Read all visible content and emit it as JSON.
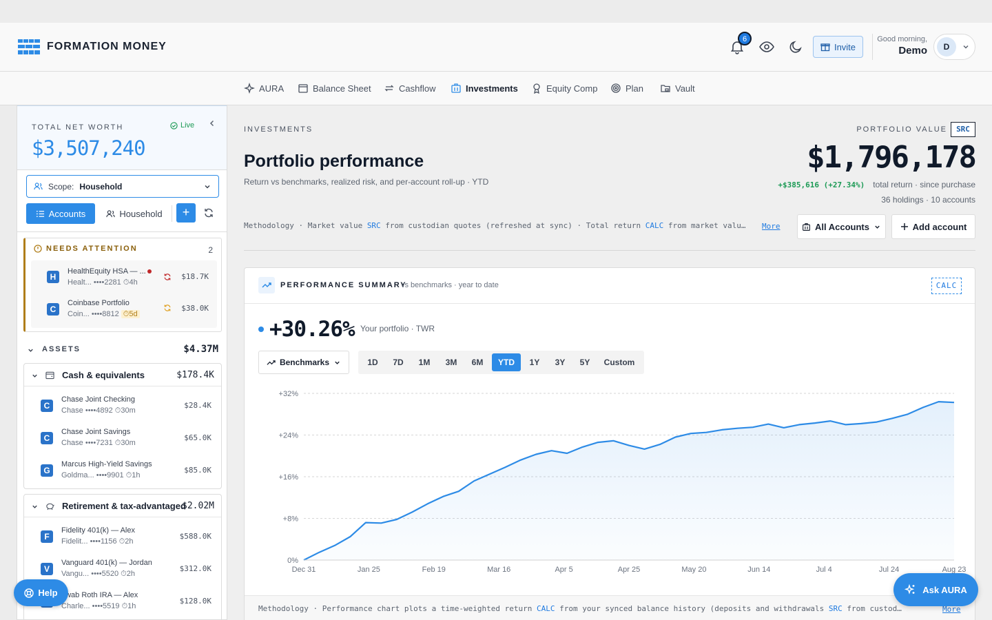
{
  "header": {
    "brand": "FORMATION MONEY",
    "notification_count": "6",
    "invite_label": "Invite",
    "greeting": "Good morning,",
    "user_name": "Demo",
    "avatar_initial": "D"
  },
  "nav": {
    "items": [
      {
        "label": "AURA",
        "icon": "sparkle-icon"
      },
      {
        "label": "Balance Sheet",
        "icon": "ledger-icon"
      },
      {
        "label": "Cashflow",
        "icon": "arrows-cycle-icon"
      },
      {
        "label": "Investments",
        "icon": "building-icon",
        "active": true
      },
      {
        "label": "Equity Comp",
        "icon": "award-icon"
      },
      {
        "label": "Plan",
        "icon": "target-icon"
      },
      {
        "label": "Vault",
        "icon": "folder-lock-icon"
      }
    ]
  },
  "sidebar": {
    "net_worth_label": "TOTAL NET WORTH",
    "live_label": "Live",
    "net_worth_value": "$3,507,240",
    "scope_prefix": "Scope:",
    "scope_value": "Household",
    "seg_accounts": "Accounts",
    "seg_household": "Household",
    "add_symbol": "+",
    "attention": {
      "title": "NEEDS ATTENTION",
      "count": "2",
      "items": [
        {
          "initial": "H",
          "name": "HealthEquity HSA — ...",
          "sub_inst": "Healt...",
          "mask": "••••2281",
          "age": "4h",
          "amount": "$18.7K"
        },
        {
          "initial": "C",
          "name": "Coinbase Portfolio",
          "sub_inst": "Coin...",
          "mask": "••••8812",
          "age": "5d",
          "amount": "$38.0K"
        }
      ]
    },
    "assets_label": "ASSETS",
    "assets_value": "$4.37M",
    "groups": [
      {
        "name": "Cash & equivalents",
        "value": "$178.4K",
        "accounts": [
          {
            "initial": "C",
            "name": "Chase Joint Checking",
            "sub_inst": "Chase",
            "mask": "••••4892",
            "age": "30m",
            "amount": "$28.4K"
          },
          {
            "initial": "C",
            "name": "Chase Joint Savings",
            "sub_inst": "Chase",
            "mask": "••••7231",
            "age": "30m",
            "amount": "$65.0K"
          },
          {
            "initial": "G",
            "name": "Marcus High-Yield Savings",
            "sub_inst": "Goldma...",
            "mask": "••••9901",
            "age": "1h",
            "amount": "$85.0K"
          }
        ]
      },
      {
        "name": "Retirement & tax-advantaged",
        "value": "$2.02M",
        "accounts": [
          {
            "initial": "F",
            "name": "Fidelity 401(k) — Alex",
            "sub_inst": "Fidelit...",
            "mask": "••••1156",
            "age": "2h",
            "amount": "$588.0K"
          },
          {
            "initial": "V",
            "name": "Vanguard 401(k) — Jordan",
            "sub_inst": "Vangu...",
            "mask": "••••5520",
            "age": "2h",
            "amount": "$312.0K"
          },
          {
            "initial": "S",
            "name": "hwab Roth IRA — Alex",
            "sub_inst": "Charle...",
            "mask": "••••5519",
            "age": "1h",
            "amount": "$128.0K"
          }
        ]
      }
    ]
  },
  "main": {
    "eyebrow": "INVESTMENTS",
    "title": "Portfolio performance",
    "subtitle": "Return vs benchmarks, realized risk, and per-account roll-up · YTD",
    "pv_label": "PORTFOLIO VALUE",
    "src_tag": "SRC",
    "pv_value": "$1,796,178",
    "pv_return": "+$385,616 (+27.34%)",
    "pv_return_caption": "total return · since purchase",
    "pv_holdings": "36 holdings · 10 accounts",
    "methodology_a": "Methodology · Market value ",
    "methodology_src": "SRC",
    "methodology_b": " from custodian quotes (refreshed at sync) · Total return ",
    "methodology_calc": "CALC",
    "methodology_c": " from market value…",
    "more_label": "More",
    "all_accounts": "All Accounts",
    "add_account": "Add account"
  },
  "perf": {
    "title": "PERFORMANCE SUMMARY",
    "subtitle": "vs benchmarks · year to date",
    "calc_tag": "CALC",
    "return_value": "+30.26%",
    "return_caption": "Your portfolio · TWR",
    "benchmarks_label": "Benchmarks",
    "ranges": [
      "1D",
      "7D",
      "1M",
      "3M",
      "6M",
      "YTD",
      "1Y",
      "3Y",
      "5Y",
      "Custom"
    ],
    "active_range": "YTD",
    "foot_a": "Methodology · Performance chart plots a time-weighted return ",
    "foot_calc": "CALC",
    "foot_b": " from your synced balance history (deposits and withdrawals ",
    "foot_src": "SRC",
    "foot_c": " from custodian…",
    "foot_more": "More"
  },
  "chart_data": {
    "type": "area",
    "title": "",
    "xlabel": "",
    "ylabel": "",
    "ylim": [
      0,
      32
    ],
    "y_ticks": [
      "0%",
      "+8%",
      "+16%",
      "+24%",
      "+32%"
    ],
    "x_tick_labels": [
      "Dec 31",
      "Jan 25",
      "Feb 19",
      "Mar 16",
      "Apr 5",
      "Apr 25",
      "May 20",
      "Jun 14",
      "Jul 4",
      "Jul 24",
      "Aug 23"
    ],
    "grid": true,
    "color": "#2d8be6",
    "series": [
      {
        "values": [
          0,
          1.5,
          2.8,
          4.5,
          7.2,
          7.1,
          7.8,
          9.2,
          10.8,
          12.2,
          13.2,
          15.2,
          16.5,
          17.8,
          19.2,
          20.3,
          21.0,
          20.5,
          21.7,
          22.6,
          22.9,
          22.0,
          21.3,
          22.2,
          23.6,
          24.3,
          24.5,
          25.0,
          25.3,
          25.5,
          26.1,
          25.4,
          26.0,
          26.3,
          26.7,
          26.0,
          26.2,
          26.5,
          27.2,
          28.0,
          29.3,
          30.4,
          30.26
        ]
      }
    ]
  },
  "floating": {
    "help_label": "Help",
    "aura_label": "Ask AURA"
  }
}
